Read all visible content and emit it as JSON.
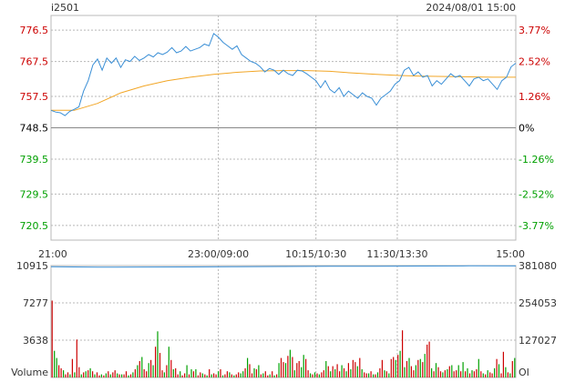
{
  "header": {
    "symbol": "i2501",
    "datetime": "2024/08/01 15:00"
  },
  "colors": {
    "up": "#cc0000",
    "down": "#00a000",
    "price_line": "#3a8fd6",
    "avg_line": "#f2a626",
    "oi_line": "#3a8fd6",
    "grid": "#b8b8b8",
    "axis_text": "#333333"
  },
  "chart_data": [
    {
      "name": "price",
      "type": "line",
      "prev_close": 748.5,
      "ylim": [
        716.3,
        780.7
      ],
      "y_ticks_left": [
        "776.5",
        "767.5",
        "757.5",
        "748.5",
        "739.5",
        "729.5",
        "720.5"
      ],
      "y_ticks_right": [
        "3.77%",
        "2.52%",
        "1.26%",
        "0%",
        "-1.26%",
        "-2.52%",
        "-3.77%"
      ],
      "y_tick_values": [
        776.5,
        767.5,
        757.5,
        748.5,
        739.5,
        729.5,
        720.5
      ],
      "x_ticks": [
        "21:00",
        "23:00/09:00",
        "10:15/10:30",
        "11:30/13:30",
        "15:00"
      ],
      "x_tick_fractions": [
        0,
        0.36,
        0.57,
        0.745,
        1
      ],
      "series": [
        {
          "name": "price",
          "points": [
            [
              0,
              753.5
            ],
            [
              0.01,
              753
            ],
            [
              0.02,
              752.8
            ],
            [
              0.03,
              752
            ],
            [
              0.04,
              753.2
            ],
            [
              0.05,
              753.8
            ],
            [
              0.06,
              754.5
            ],
            [
              0.07,
              759
            ],
            [
              0.08,
              762
            ],
            [
              0.09,
              766.5
            ],
            [
              0.1,
              768.2
            ],
            [
              0.11,
              765
            ],
            [
              0.12,
              768.5
            ],
            [
              0.13,
              767
            ],
            [
              0.14,
              768.5
            ],
            [
              0.15,
              765.8
            ],
            [
              0.16,
              768
            ],
            [
              0.17,
              767.5
            ],
            [
              0.18,
              769
            ],
            [
              0.19,
              767.8
            ],
            [
              0.2,
              768.5
            ],
            [
              0.21,
              769.5
            ],
            [
              0.22,
              768.8
            ],
            [
              0.23,
              770
            ],
            [
              0.24,
              769.5
            ],
            [
              0.25,
              770.2
            ],
            [
              0.26,
              771.5
            ],
            [
              0.27,
              770
            ],
            [
              0.28,
              770.5
            ],
            [
              0.29,
              771.8
            ],
            [
              0.3,
              770.5
            ],
            [
              0.31,
              771
            ],
            [
              0.32,
              771.5
            ],
            [
              0.33,
              772.5
            ],
            [
              0.34,
              772
            ],
            [
              0.35,
              775.5
            ],
            [
              0.36,
              774.5
            ],
            [
              0.37,
              773
            ],
            [
              0.38,
              772
            ],
            [
              0.39,
              771
            ],
            [
              0.4,
              772
            ],
            [
              0.41,
              769.5
            ],
            [
              0.42,
              768.5
            ],
            [
              0.43,
              767.5
            ],
            [
              0.44,
              767
            ],
            [
              0.45,
              766
            ],
            [
              0.46,
              764.5
            ],
            [
              0.47,
              765.5
            ],
            [
              0.48,
              765
            ],
            [
              0.49,
              763.8
            ],
            [
              0.5,
              765
            ],
            [
              0.51,
              764
            ],
            [
              0.52,
              763.5
            ],
            [
              0.53,
              765
            ],
            [
              0.54,
              764.8
            ],
            [
              0.55,
              764
            ],
            [
              0.56,
              763
            ],
            [
              0.57,
              762
            ],
            [
              0.58,
              760
            ],
            [
              0.59,
              762
            ],
            [
              0.6,
              759.5
            ],
            [
              0.61,
              758.5
            ],
            [
              0.62,
              760
            ],
            [
              0.63,
              757.5
            ],
            [
              0.64,
              759
            ],
            [
              0.65,
              758
            ],
            [
              0.66,
              757
            ],
            [
              0.67,
              758.5
            ],
            [
              0.68,
              757.5
            ],
            [
              0.69,
              757
            ],
            [
              0.7,
              755
            ],
            [
              0.71,
              757
            ],
            [
              0.72,
              758
            ],
            [
              0.73,
              759
            ],
            [
              0.74,
              761
            ],
            [
              0.75,
              762
            ],
            [
              0.76,
              765
            ],
            [
              0.77,
              765.8
            ],
            [
              0.78,
              763.5
            ],
            [
              0.79,
              764.5
            ],
            [
              0.8,
              763
            ],
            [
              0.81,
              763.5
            ],
            [
              0.82,
              760.5
            ],
            [
              0.83,
              762
            ],
            [
              0.84,
              761
            ],
            [
              0.85,
              762.5
            ],
            [
              0.86,
              764
            ],
            [
              0.87,
              763
            ],
            [
              0.88,
              763.5
            ],
            [
              0.89,
              762
            ],
            [
              0.9,
              760.5
            ],
            [
              0.91,
              762.5
            ],
            [
              0.92,
              763
            ],
            [
              0.93,
              762
            ],
            [
              0.94,
              762.5
            ],
            [
              0.95,
              761
            ],
            [
              0.96,
              759.5
            ],
            [
              0.97,
              762
            ],
            [
              0.98,
              763
            ],
            [
              0.99,
              766
            ],
            [
              1,
              767
            ]
          ]
        },
        {
          "name": "average",
          "points": [
            [
              0,
              753.5
            ],
            [
              0.05,
              753.5
            ],
            [
              0.1,
              755.5
            ],
            [
              0.15,
              758.5
            ],
            [
              0.2,
              760.5
            ],
            [
              0.25,
              762
            ],
            [
              0.3,
              763
            ],
            [
              0.35,
              763.8
            ],
            [
              0.4,
              764.4
            ],
            [
              0.45,
              764.8
            ],
            [
              0.5,
              764.9
            ],
            [
              0.55,
              764.9
            ],
            [
              0.6,
              764.7
            ],
            [
              0.65,
              764.2
            ],
            [
              0.7,
              763.8
            ],
            [
              0.75,
              763.5
            ],
            [
              0.8,
              763.3
            ],
            [
              0.85,
              763.2
            ],
            [
              0.9,
              763.1
            ],
            [
              0.95,
              763
            ],
            [
              1,
              763
            ]
          ]
        }
      ]
    },
    {
      "name": "volume",
      "type": "bar",
      "ylim": [
        0,
        10915
      ],
      "y_ticks_left": [
        "10915",
        "7277",
        "3638",
        "Volume"
      ],
      "y_ticks_right": [
        "381080",
        "254053",
        "127027",
        "OI"
      ],
      "y_tick_values": [
        10915,
        7277,
        3638,
        0
      ],
      "oi_ylim": [
        0,
        381080
      ],
      "oi_series": [
        [
          0,
          377000
        ],
        [
          0.1,
          375500
        ],
        [
          0.2,
          376000
        ],
        [
          0.3,
          376500
        ],
        [
          0.4,
          377500
        ],
        [
          0.5,
          378000
        ],
        [
          0.6,
          378500
        ],
        [
          0.7,
          379000
        ],
        [
          0.8,
          379500
        ],
        [
          0.9,
          380000
        ],
        [
          1,
          379800
        ]
      ],
      "values": [
        7500,
        2600,
        1900,
        1200,
        900,
        700,
        300,
        500,
        300,
        1800,
        500,
        3700,
        1000,
        300,
        500,
        600,
        700,
        900,
        600,
        300,
        500,
        200,
        300,
        200,
        400,
        600,
        300,
        500,
        700,
        400,
        300,
        300,
        300,
        600,
        200,
        300,
        500,
        800,
        1200,
        1600,
        2000,
        800,
        600,
        1400,
        1700,
        1200,
        3000,
        4500,
        2400,
        700,
        500,
        1200,
        3000,
        1700,
        800,
        900,
        300,
        600,
        200,
        400,
        1200,
        300,
        800,
        600,
        800,
        200,
        500,
        400,
        300,
        200,
        800,
        300,
        400,
        300,
        600,
        800,
        200,
        300,
        600,
        500,
        300,
        200,
        300,
        500,
        400,
        600,
        900,
        1900,
        1300,
        400,
        900,
        800,
        1200,
        300,
        400,
        600,
        200,
        300,
        600,
        200,
        300,
        1400,
        1900,
        1500,
        1400,
        2100,
        2700,
        2000,
        700,
        1400,
        1600,
        1000,
        2200,
        1800,
        700,
        400,
        300,
        500,
        400,
        300,
        500,
        700,
        1600,
        1100,
        600,
        1100,
        800,
        1300,
        600,
        1200,
        900,
        600,
        1400,
        800,
        1700,
        1500,
        1100,
        1900,
        800,
        500,
        400,
        400,
        600,
        300,
        300,
        500,
        900,
        1700,
        700,
        600,
        400,
        1800,
        2000,
        1700,
        2200,
        2600,
        4600,
        1000,
        1600,
        1900,
        1100,
        700,
        1200,
        1700,
        1800,
        1500,
        2300,
        3200,
        3500,
        900,
        600,
        1400,
        1000,
        600,
        500,
        700,
        800,
        1100,
        1200,
        600,
        700,
        1200,
        600,
        1500,
        600,
        900,
        400,
        700,
        600,
        800,
        1800,
        600,
        400,
        300,
        700,
        500,
        400,
        900,
        1800,
        1300,
        400,
        2500,
        1000,
        500,
        400,
        1600,
        1900
      ],
      "directions": "rggrrgrrgrgrrgrgrgrgrrgrgrgrrgrgrrgrgrgrgrrgrgrgrrgrgrgrrgrrgrgrgrrgrgrgrrgrgrrgrgrrggrgrrgrgrgrrgrgrgrrgrgrgrrggrrgrgrgrrgrgrgrrgrgrgrrgrgrrgrgrgrrgrgrrgrgrgrgrrgrgrgrrgrgrrgrgrgrrgrgrgrgrrgrgrgrrgrgrrgrgrgrg"
    }
  ]
}
